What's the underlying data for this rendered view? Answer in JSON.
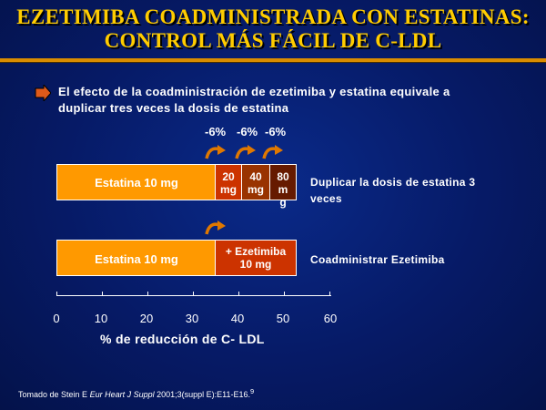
{
  "slide": {
    "title_line1": "EZETIMIBA COADMINISTRADA CON ESTATINAS:",
    "title_line2": "CONTROL MÁS FÁCIL DE C-LDL",
    "bullet_line1": "El efecto de la coadministración de ezetimiba y estatina equivale a",
    "bullet_line2": "duplicar tres veces la dosis de estatina",
    "reference_prefix": "Tomado de Stein E ",
    "reference_journal": "Eur Heart J Suppl",
    "reference_suffix": " 2001;3(suppl E):E11-E16.",
    "reference_sup": "9"
  },
  "colors": {
    "title": "#ffcc00",
    "bar": "#ff9900",
    "dose_20": "#cc3300",
    "dose_40": "#993300",
    "dose_80": "#661a00",
    "ezetimiba": "#cc3300",
    "arrow": "#e07800"
  },
  "diagram": {
    "percent_labels": [
      "-6%",
      "-6%",
      "-6%"
    ],
    "row1": {
      "bar_label": "Estatina 10 mg",
      "doses": [
        {
          "line1": "20",
          "line2": "mg"
        },
        {
          "line1": "40",
          "line2": "mg"
        },
        {
          "line1": "80",
          "line2": "m",
          "line3": "g"
        }
      ],
      "side_line1": "Duplicar la dosis de estatina 3",
      "side_line2": "veces"
    },
    "row2": {
      "bar_label": "Estatina 10 mg",
      "addon_line1": "+ Ezetimiba",
      "addon_line2": "10 mg",
      "side_text": "Coadministrar Ezetimiba"
    },
    "axis": {
      "ticks": [
        "0",
        "10",
        "20",
        "30",
        "40",
        "50",
        "60"
      ],
      "label": "% de reducción de C- LDL"
    }
  }
}
